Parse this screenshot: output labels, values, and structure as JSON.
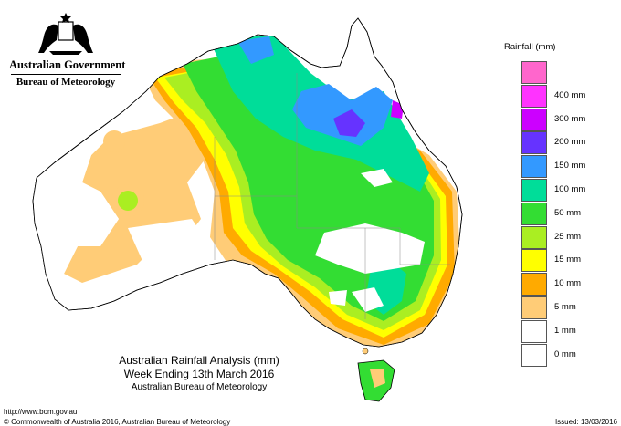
{
  "header": {
    "government": "Australian Government",
    "bureau": "Bureau of Meteorology"
  },
  "map": {
    "title_line1": "Australian Rainfall Analysis (mm)",
    "title_line2": "Week Ending 13th March 2016",
    "title_line3": "Australian Bureau of Meteorology"
  },
  "footer": {
    "url": "http://www.bom.gov.au",
    "copyright": "© Commonwealth of Australia 2016, Australian Bureau of Meteorology",
    "issued": "Issued: 13/03/2016"
  },
  "legend": {
    "title": "Rainfall (mm)",
    "items": [
      {
        "label": "",
        "color": "#ff66cc"
      },
      {
        "label": "400 mm",
        "color": "#ff33ff"
      },
      {
        "label": "300 mm",
        "color": "#cc00ff"
      },
      {
        "label": "200 mm",
        "color": "#6633ff"
      },
      {
        "label": "150 mm",
        "color": "#3399ff"
      },
      {
        "label": "100 mm",
        "color": "#00dd99"
      },
      {
        "label": "50 mm",
        "color": "#33dd33"
      },
      {
        "label": "25 mm",
        "color": "#aaee22"
      },
      {
        "label": "15 mm",
        "color": "#ffff00"
      },
      {
        "label": "10 mm",
        "color": "#ffaa00"
      },
      {
        "label": "5 mm",
        "color": "#ffcc77"
      },
      {
        "label": "1 mm",
        "color": "#ffffff"
      },
      {
        "label": "0 mm",
        "color": "#ffffff"
      }
    ]
  }
}
